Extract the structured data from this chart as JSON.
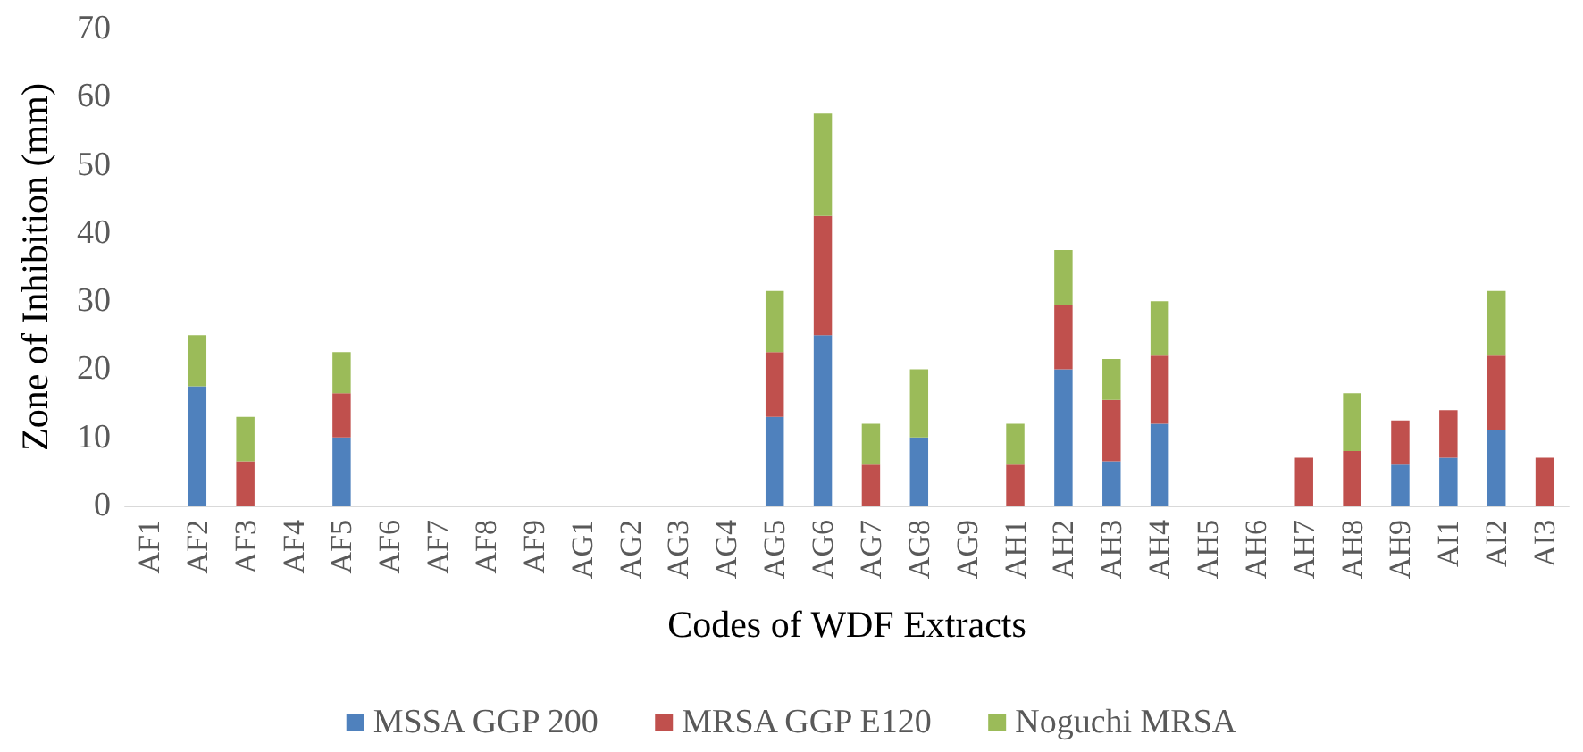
{
  "chart_data": {
    "type": "bar",
    "stacked": true,
    "xlabel": "Codes of WDF Extracts",
    "ylabel": "Zone of Inhibition (mm)",
    "categories": [
      "AF1",
      "AF2",
      "AF3",
      "AF4",
      "AF5",
      "AF6",
      "AF7",
      "AF8",
      "AF9",
      "AG1",
      "AG2",
      "AG3",
      "AG4",
      "AG5",
      "AG6",
      "AG7",
      "AG8",
      "AG9",
      "AH1",
      "AH2",
      "AH3",
      "AH4",
      "AH5",
      "AH6",
      "AH7",
      "AH8",
      "AH9",
      "AI1",
      "AI2",
      "AI3"
    ],
    "series": [
      {
        "name": "MSSA GGP 200",
        "color": "#4f81bd",
        "values": [
          0,
          17.5,
          0,
          0,
          10,
          0,
          0,
          0,
          0,
          0,
          0,
          0,
          0,
          13,
          25,
          0,
          10,
          0,
          0,
          20,
          6.5,
          12,
          0,
          0,
          0,
          0,
          6,
          7,
          11,
          0
        ]
      },
      {
        "name": "MRSA GGP E120",
        "color": "#c0504d",
        "values": [
          0,
          0,
          6.5,
          0,
          6.5,
          0,
          0,
          0,
          0,
          0,
          0,
          0,
          0,
          9.5,
          17.5,
          6,
          0,
          0,
          6,
          9.5,
          9,
          10,
          0,
          0,
          7,
          8,
          6.5,
          7,
          11,
          7
        ]
      },
      {
        "name": "Noguchi MRSA",
        "color": "#9bbb59",
        "values": [
          0,
          7.5,
          6.5,
          0,
          6,
          0,
          0,
          0,
          0,
          0,
          0,
          0,
          0,
          9,
          15,
          6,
          10,
          0,
          6,
          8,
          6,
          8,
          0,
          0,
          0,
          8.5,
          0,
          0,
          9.5,
          0
        ]
      }
    ],
    "ylim": [
      0,
      70
    ],
    "yticks": [
      0,
      10,
      20,
      30,
      40,
      50,
      60,
      70
    ],
    "grid": false,
    "legend": "bottom"
  }
}
